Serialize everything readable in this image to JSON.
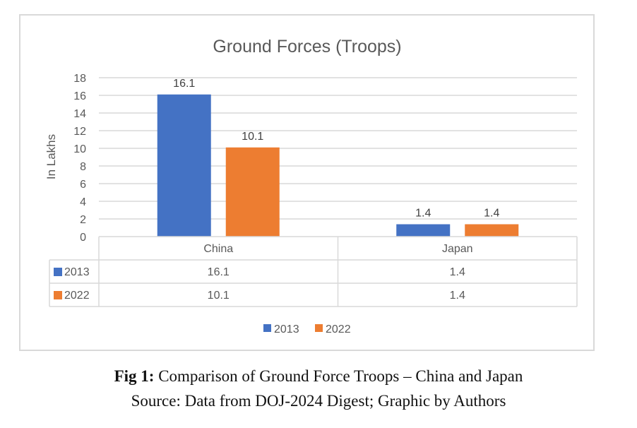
{
  "chart_data": {
    "type": "bar",
    "title": "Ground Forces (Troops)",
    "xlabel": "",
    "ylabel": "In Lakhs",
    "ylim": [
      0,
      18
    ],
    "yticks": [
      "0",
      "2",
      "4",
      "6",
      "8",
      "10",
      "12",
      "14",
      "16",
      "18"
    ],
    "grid": true,
    "categories": [
      "China",
      "Japan"
    ],
    "series": [
      {
        "name": "2013",
        "color": "#4472c4",
        "values": [
          16.1,
          1.4
        ],
        "labels": [
          "16.1",
          "1.4"
        ]
      },
      {
        "name": "2022",
        "color": "#ed7d31",
        "values": [
          10.1,
          1.4
        ],
        "labels": [
          "10.1",
          "1.4"
        ]
      }
    ],
    "legend_position": "bottom",
    "data_table": true
  },
  "caption": {
    "fig_label": "Fig 1:",
    "fig_text": " Comparison of Ground Force Troops – China and Japan",
    "source": "Source: Data from DOJ-2024 Digest; Graphic by Authors"
  }
}
